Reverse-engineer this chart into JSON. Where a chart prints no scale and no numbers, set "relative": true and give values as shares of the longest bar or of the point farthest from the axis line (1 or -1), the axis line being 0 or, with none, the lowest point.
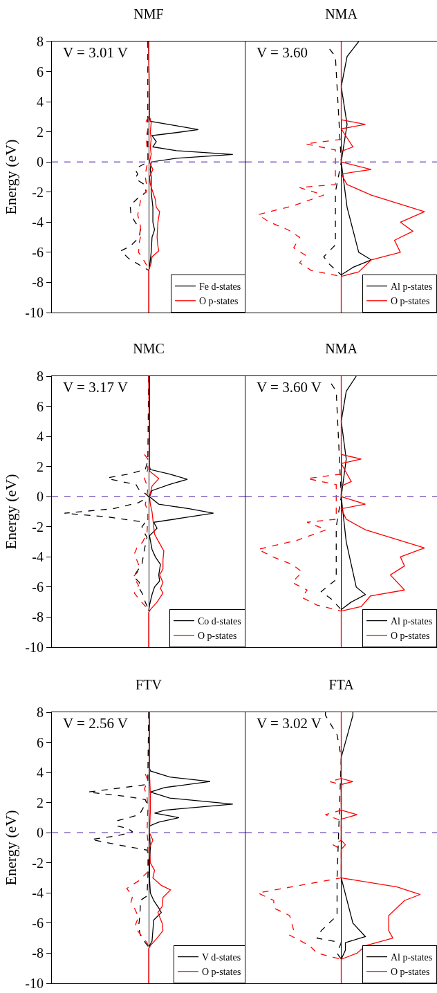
{
  "chart_data": [
    {
      "type": "line",
      "orientation": "horizontal",
      "relative": true,
      "title": "NMF",
      "ylabel": "Energy (eV)",
      "annotations": [
        "V = 3.01 V"
      ],
      "ylim": [
        -10,
        8
      ],
      "yticks": [
        -10,
        -8,
        -6,
        -4,
        -2,
        0,
        2,
        4,
        6,
        8
      ],
      "tick_labels": "y",
      "legend": "bottom right",
      "grid": false,
      "ref_lines": [
        {
          "axis": "y",
          "value": 0,
          "color": "#8060c0",
          "line_style": "dashed"
        }
      ],
      "series": [
        {
          "name": "Fe d-states",
          "color": "#000000",
          "line_style": "solid",
          "values": [
            0,
            0.01,
            0.02,
            0.33,
            0.59,
            0.33,
            0.04,
            0.09,
            0.05,
            0.33,
            1,
            0.33,
            0.03,
            0.02,
            0.03,
            0.03,
            0.04,
            0.05,
            0.05,
            0.07,
            0.04,
            0.03,
            0.01,
            0
          ],
          "x": [
            8,
            3,
            2.7,
            2.4,
            2.15,
            1.95,
            1.75,
            1.35,
            1,
            0.75,
            0.5,
            0.25,
            0,
            -0.5,
            -1,
            -2,
            -2.5,
            -3,
            -4,
            -4.5,
            -5,
            -6,
            -7,
            -7.2
          ]
        },
        {
          "color": "#000000",
          "line_style": "dashed",
          "values": [
            -0.01,
            -0.01,
            -0.11,
            -0.16,
            -0.13,
            -0.16,
            -0.05,
            -0.03,
            -0.11,
            -0.22,
            -0.21,
            -0.16,
            -0.1,
            -0.11,
            -0.22,
            -0.33,
            -0.24,
            -0.09,
            0
          ],
          "x": [
            8,
            0,
            -0.3,
            -0.5,
            -0.8,
            -1.1,
            -1.5,
            -2,
            -2.3,
            -2.9,
            -3.5,
            -4,
            -4.5,
            -5,
            -5.6,
            -5.9,
            -6.4,
            -6.9,
            -7.2
          ]
        },
        {
          "name": "O p-states",
          "color": "#ff0000",
          "line_style": "solid",
          "values": [
            0,
            0.01,
            0.03,
            0.02,
            0.03,
            0.02,
            0.03,
            0.01,
            0.05,
            0.01,
            0.02,
            0.05,
            0.08,
            0.09,
            0.13,
            0.11,
            0.1,
            0.11,
            0.12,
            0.04,
            0.03,
            0,
            0
          ],
          "x": [
            8,
            3,
            2.6,
            2,
            1.5,
            1,
            0.5,
            0,
            -0.5,
            -1,
            -1.5,
            -2,
            -2.5,
            -3,
            -3.3,
            -4,
            -5,
            -5.6,
            -5.9,
            -6.3,
            -6.7,
            -7.2,
            -10
          ]
        },
        {
          "color": "#ff0000",
          "line_style": "dashed",
          "values": [
            0,
            -0.03,
            -0.01,
            -0.03,
            -0.02,
            -0.01,
            -0.01,
            -0.03,
            -0.04,
            -0.02,
            -0.03,
            -0.09,
            -0.11,
            -0.13,
            -0.1,
            -0.09,
            -0.11,
            -0.12,
            -0.05,
            -0.01,
            0
          ],
          "x": [
            3,
            2.7,
            2.2,
            1.6,
            1,
            0.5,
            0,
            -0.5,
            -1,
            -1.7,
            -2,
            -2.3,
            -3,
            -3.5,
            -4.2,
            -4.8,
            -5.3,
            -6,
            -6.6,
            -7,
            -7.2
          ]
        }
      ]
    },
    {
      "type": "line",
      "orientation": "horizontal",
      "relative": true,
      "title": "NMA",
      "annotations": [
        "V = 3.60"
      ],
      "ylim": [
        -10,
        8
      ],
      "yticks": [
        -10,
        -8,
        -6,
        -4,
        -2,
        0,
        2,
        4,
        6,
        8
      ],
      "tick_labels": false,
      "legend": "bottom right",
      "grid": false,
      "ref_lines": [
        {
          "axis": "y",
          "value": 0,
          "color": "#8060c0",
          "line_style": "dashed"
        }
      ],
      "series": [
        {
          "name": "Al p-states",
          "color": "#000000",
          "line_style": "solid",
          "values": [
            0.21,
            0.07,
            0,
            0.07,
            0,
            0.07,
            0.21,
            0.36,
            0.14,
            0
          ],
          "x": [
            8,
            7,
            5,
            2.5,
            0,
            -3,
            -6,
            -6.5,
            -7,
            -7.5
          ]
        },
        {
          "color": "#000000",
          "line_style": "dashed",
          "values": [
            -0.14,
            -0.07,
            0,
            -0.07,
            -0.07,
            -0.07,
            -0.21,
            -0.14,
            0
          ],
          "x": [
            7.5,
            7,
            0,
            -2,
            -4,
            -5.5,
            -6.3,
            -6.8,
            -7.5
          ]
        },
        {
          "name": "O p-states",
          "color": "#ff0000",
          "line_style": "solid",
          "values": [
            0,
            0,
            0.29,
            0,
            0.14,
            0,
            0,
            0.36,
            0,
            0.07,
            0.36,
            1,
            0.71,
            0.86,
            0.64,
            0.71,
            0.36,
            0.21,
            0,
            0
          ],
          "x": [
            8,
            2.8,
            2.5,
            2.2,
            1,
            0.7,
            0,
            -0.5,
            -0.8,
            -1.5,
            -2.2,
            -3.3,
            -4,
            -4.6,
            -5.2,
            -6,
            -6.5,
            -7.3,
            -7.6,
            -10
          ]
        },
        {
          "color": "#ff0000",
          "line_style": "dashed",
          "values": [
            0,
            -0.43,
            -0.07,
            -0.07,
            -0.5,
            -0.21,
            -0.57,
            -1,
            -0.86,
            -0.64,
            -0.5,
            -0.57,
            -0.43,
            -0.5,
            -0.36,
            0
          ],
          "x": [
            1.5,
            1.2,
            0.8,
            -1.5,
            -1.7,
            -2.2,
            -2.9,
            -3.5,
            -4,
            -4.5,
            -5,
            -5.7,
            -6.2,
            -6.7,
            -7.2,
            -7.6
          ]
        }
      ]
    },
    {
      "type": "line",
      "orientation": "horizontal",
      "relative": true,
      "title": "NMC",
      "ylabel": "Energy (eV)",
      "annotations": [
        "V = 3.17 V"
      ],
      "ylim": [
        -10,
        8
      ],
      "yticks": [
        -10,
        -8,
        -6,
        -4,
        -2,
        0,
        2,
        4,
        6,
        8
      ],
      "tick_labels": "y",
      "legend": "bottom right",
      "grid": false,
      "ref_lines": [
        {
          "axis": "y",
          "value": 0,
          "color": "#8060c0",
          "line_style": "dashed"
        }
      ],
      "series": [
        {
          "name": "Co d-states",
          "color": "#000000",
          "line_style": "solid",
          "values": [
            0.01,
            0.01,
            0.02,
            0.25,
            0.46,
            0.24,
            0.04,
            0.01,
            0.12,
            0.48,
            0.77,
            0.42,
            0.06,
            0.1,
            0.01,
            0.04,
            0.08,
            0.14,
            0.12,
            0.13,
            0.07,
            0.04,
            0.01,
            0
          ],
          "x": [
            8,
            2,
            1.8,
            1.5,
            1.15,
            0.8,
            0.4,
            0,
            -0.5,
            -0.8,
            -1.1,
            -1.4,
            -1.7,
            -2.1,
            -2.6,
            -3.5,
            -4,
            -4.5,
            -5.2,
            -5.6,
            -6,
            -6.5,
            -7.2,
            -7.6
          ]
        },
        {
          "color": "#000000",
          "line_style": "dashed",
          "values": [
            0,
            -0.01,
            -0.04,
            -0.24,
            -0.49,
            -0.45,
            -0.15,
            -0.12,
            -0.04,
            0,
            -0.12,
            -0.42,
            -1,
            -0.48,
            -0.04,
            -0.08,
            -0.06,
            -0.02,
            -0.05,
            -0.08,
            -0.18,
            -0.11,
            -0.12,
            -0.07,
            -0.04,
            0
          ],
          "x": [
            8,
            2.4,
            1.8,
            1.5,
            1.25,
            1.15,
            0.8,
            0.5,
            0.2,
            0,
            -0.4,
            -0.8,
            -1.1,
            -1.35,
            -1.7,
            -2,
            -2.3,
            -2.7,
            -3.5,
            -4.5,
            -5.3,
            -5.7,
            -6,
            -6.5,
            -7,
            -7.5
          ]
        },
        {
          "name": "O p-states",
          "color": "#ff0000",
          "line_style": "solid",
          "values": [
            0,
            0.01,
            0.01,
            0.12,
            0.04,
            0.01,
            0.02,
            0.04,
            0.05,
            0.06,
            0.07,
            0.12,
            0.18,
            0.17,
            0.17,
            0.13,
            0.17,
            0.14,
            0.17,
            0.1,
            0.02,
            0,
            0
          ],
          "x": [
            8,
            2.6,
            1.7,
            1.2,
            0.7,
            0,
            -0.5,
            -1,
            -1.5,
            -2,
            -2.5,
            -3,
            -3.6,
            -4.2,
            -4.8,
            -5.2,
            -5.7,
            -6.1,
            -6.4,
            -7,
            -7.5,
            -7.7,
            -10
          ]
        },
        {
          "color": "#ff0000",
          "line_style": "dashed",
          "values": [
            -0.05,
            -0.01,
            -0.01,
            -0.05,
            -0.01,
            -0.02,
            -0.04,
            -0.01,
            -0.01,
            -0.02,
            -0.07,
            -0.14,
            -0.17,
            -0.12,
            -0.13,
            -0.18,
            -0.12,
            -0.17,
            -0.1,
            -0.02,
            0
          ],
          "x": [
            2.8,
            2.5,
            1.8,
            1.2,
            0.6,
            0,
            -0.5,
            -1,
            -1.5,
            -2.4,
            -3,
            -3.4,
            -3.8,
            -4.5,
            -5,
            -5.3,
            -5.9,
            -6.4,
            -6.9,
            -7.4,
            -7.6
          ]
        }
      ]
    },
    {
      "type": "line",
      "orientation": "horizontal",
      "relative": true,
      "title": "NMA",
      "annotations": [
        "V = 3.60 V"
      ],
      "ylim": [
        -10,
        8
      ],
      "yticks": [
        -10,
        -8,
        -6,
        -4,
        -2,
        0,
        2,
        4,
        6,
        8
      ],
      "tick_labels": false,
      "legend": "bottom right",
      "grid": false,
      "ref_lines": [
        {
          "axis": "y",
          "value": 0,
          "color": "#8060c0",
          "line_style": "dashed"
        }
      ],
      "series": [
        {
          "name": "Al p-states",
          "color": "#000000",
          "line_style": "solid",
          "values": [
            0.18,
            0.06,
            0,
            0.06,
            0,
            0.06,
            0.18,
            0.29,
            0.12,
            0
          ],
          "x": [
            8,
            7,
            5,
            2.5,
            0,
            -3,
            -6,
            -6.5,
            -7,
            -7.5
          ]
        },
        {
          "color": "#000000",
          "line_style": "dashed",
          "values": [
            -0.12,
            -0.06,
            0,
            -0.06,
            -0.06,
            -0.06,
            -0.24,
            -0.12,
            0
          ],
          "x": [
            7.5,
            7,
            0,
            -2,
            -4,
            -5.5,
            -6.3,
            -6.8,
            -7.5
          ]
        },
        {
          "name": "O p-states",
          "color": "#ff0000",
          "line_style": "solid",
          "values": [
            0,
            0,
            0.24,
            0,
            0.12,
            0,
            0,
            0.29,
            0,
            0.06,
            0.29,
            1,
            0.71,
            0.76,
            0.59,
            0.76,
            0.35,
            0.24,
            0,
            0
          ],
          "x": [
            8,
            2.8,
            2.5,
            2.2,
            1,
            0.7,
            0,
            -0.5,
            -0.8,
            -1.5,
            -2.2,
            -3.4,
            -4,
            -4.6,
            -5.2,
            -6.2,
            -6.6,
            -7.3,
            -7.6,
            -10
          ]
        },
        {
          "color": "#ff0000",
          "line_style": "dashed",
          "values": [
            0,
            -0.41,
            -0.06,
            -0.06,
            -0.41,
            -0.18,
            -0.53,
            -1,
            -0.82,
            -0.59,
            -0.47,
            -0.59,
            -0.41,
            -0.47,
            -0.29,
            0
          ],
          "x": [
            1.5,
            1.2,
            0.8,
            -1.5,
            -1.7,
            -2.2,
            -2.9,
            -3.5,
            -4,
            -4.5,
            -5,
            -5.7,
            -6.2,
            -6.7,
            -7.2,
            -7.6
          ]
        }
      ]
    },
    {
      "type": "line",
      "orientation": "horizontal",
      "relative": true,
      "title": "FTV",
      "ylabel": "Energy (eV)",
      "annotations": [
        "V = 2.56 V"
      ],
      "ylim": [
        -10,
        8
      ],
      "yticks": [
        -10,
        -8,
        -6,
        -4,
        -2,
        0,
        2,
        4,
        6,
        8
      ],
      "tick_labels": "y",
      "legend": "bottom right",
      "grid": false,
      "ref_lines": [
        {
          "axis": "y",
          "value": 0,
          "color": "#8060c0",
          "line_style": "dashed"
        }
      ],
      "series": [
        {
          "name": "V d-states",
          "color": "#000000",
          "line_style": "solid",
          "values": [
            0.01,
            0.01,
            0.02,
            0.25,
            0.73,
            0.19,
            0.02,
            0.25,
            1,
            0.19,
            0.07,
            0.36,
            0.12,
            0.01,
            0.01,
            0.02,
            0.01,
            0.01,
            0.02,
            0.06,
            0.12,
            0.15,
            0.06,
            0.05,
            0.04,
            0
          ],
          "x": [
            8,
            4.3,
            4.1,
            3.7,
            3.4,
            3,
            2.7,
            2.3,
            1.9,
            1.5,
            1.3,
            1,
            0.7,
            0.45,
            0,
            -1,
            -2,
            -3,
            -4,
            -4.5,
            -5,
            -5.3,
            -5.8,
            -6.5,
            -7.2,
            -7.6
          ]
        },
        {
          "color": "#000000",
          "line_style": "dashed",
          "values": [
            0,
            -0.01,
            -0.02,
            -0.72,
            -0.25,
            -0.04,
            -0.02,
            -0.06,
            -0.11,
            -0.37,
            -0.38,
            -0.25,
            -0.19,
            -0.37,
            -0.68,
            -0.37,
            -0.02,
            0,
            -0.01,
            -0.02,
            -0.1,
            -0.1,
            -0.11,
            -0.12,
            -0.1,
            -0.04,
            0
          ],
          "x": [
            8,
            3.5,
            3.2,
            2.7,
            2.4,
            2.2,
            1.9,
            1.7,
            1.2,
            0.8,
            0.45,
            0.3,
            0.05,
            -0.2,
            -0.45,
            -0.8,
            -1.15,
            -1.5,
            -3,
            -4.2,
            -4.5,
            -5,
            -5.8,
            -6.2,
            -6.8,
            -7.3,
            -7.6
          ]
        },
        {
          "name": "O p-states",
          "color": "#ff0000",
          "line_style": "solid",
          "values": [
            0.01,
            0.01,
            0.02,
            0.02,
            0.01,
            0.05,
            0.01,
            0.02,
            0.07,
            0.05,
            0.15,
            0.26,
            0.17,
            0.16,
            0.11,
            0.16,
            0.17,
            0.1,
            0.02,
            0,
            0
          ],
          "x": [
            8,
            4,
            2.5,
            1.5,
            0,
            -0.5,
            -1,
            -2,
            -2.5,
            -3,
            -3.5,
            -3.8,
            -4.3,
            -4.9,
            -5.3,
            -6,
            -6.5,
            -7,
            -7.5,
            -7.7,
            -10
          ]
        },
        {
          "color": "#ff0000",
          "line_style": "dashed",
          "values": [
            -0.04,
            -0.01,
            -0.05,
            -0.02,
            -0.01,
            -0.02,
            -0.01,
            -0.01,
            -0.12,
            -0.26,
            -0.19,
            -0.21,
            -0.17,
            -0.12,
            -0.15,
            -0.16,
            -0.09,
            -0.02,
            0
          ],
          "x": [
            3.9,
            3.5,
            2.9,
            2.5,
            1.5,
            0,
            -0.5,
            -2.6,
            -3.2,
            -3.7,
            -4.2,
            -4.6,
            -5,
            -5.6,
            -6,
            -6.3,
            -6.8,
            -7.3,
            -7.6
          ]
        }
      ]
    },
    {
      "type": "line",
      "orientation": "horizontal",
      "relative": true,
      "title": "FTA",
      "annotations": [
        "V = 3.02 V"
      ],
      "ylim": [
        -10,
        8
      ],
      "yticks": [
        -10,
        -8,
        -6,
        -4,
        -2,
        0,
        2,
        4,
        6,
        8
      ],
      "tick_labels": false,
      "legend": "bottom right",
      "grid": false,
      "ref_lines": [
        {
          "axis": "y",
          "value": 0,
          "color": "#8060c0",
          "line_style": "dashed"
        }
      ],
      "series": [
        {
          "name": "Al p-states",
          "color": "#000000",
          "line_style": "solid",
          "values": [
            0.14,
            0.14,
            0.05,
            0,
            0,
            0.14,
            0.29,
            0.05,
            0.05,
            0
          ],
          "x": [
            8,
            7.8,
            6,
            5,
            -3,
            -6,
            -6.9,
            -7.3,
            -7.8,
            -8.4
          ]
        },
        {
          "color": "#000000",
          "line_style": "dashed",
          "values": [
            -0.19,
            -0.19,
            -0.05,
            0,
            -0.05,
            -0.05,
            -0.24,
            -0.29,
            0,
            -0.05,
            0
          ],
          "x": [
            8,
            7.8,
            6.5,
            5,
            -3,
            -5.5,
            -6.5,
            -7,
            -7.3,
            -8,
            -8.4
          ]
        },
        {
          "name": "O p-states",
          "color": "#ff0000",
          "line_style": "solid",
          "values": [
            0,
            0,
            0.14,
            0,
            0,
            0.19,
            0,
            0,
            0.05,
            0,
            0,
            0.67,
            0.95,
            0.76,
            0.57,
            0.57,
            0.62,
            0.29,
            0.19,
            0,
            0
          ],
          "x": [
            8,
            3.6,
            3.4,
            3.2,
            1.5,
            1.2,
            0.9,
            -0.5,
            -0.8,
            -1.1,
            -3,
            -3.6,
            -4.1,
            -4.5,
            -5.5,
            -6.5,
            -7,
            -7.5,
            -8,
            -8.4,
            -10
          ]
        },
        {
          "color": "#ff0000",
          "line_style": "dashed",
          "values": [
            0,
            -0.14,
            0,
            0,
            -0.19,
            0,
            0,
            -0.1,
            0,
            0,
            -1,
            -0.81,
            -0.81,
            -0.62,
            -0.57,
            -0.62,
            -0.38,
            -0.29,
            0
          ],
          "x": [
            3.6,
            3.4,
            3.2,
            1.5,
            1.2,
            0.8,
            -0.5,
            -0.8,
            -1.1,
            -3,
            -4,
            -4.5,
            -5,
            -5.5,
            -6.5,
            -6.8,
            -7.5,
            -8,
            -8.4
          ]
        }
      ]
    }
  ]
}
